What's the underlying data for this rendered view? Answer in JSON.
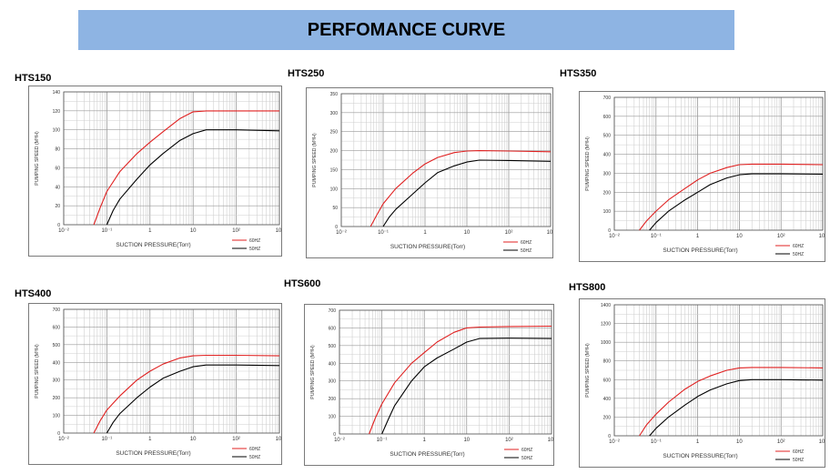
{
  "header": {
    "title": "PERFOMANCE CURVE"
  },
  "chart_data": [
    {
      "type": "line",
      "model": "HTS150",
      "xlabel": "SUCTION PRESSURE(Torr)",
      "ylabel": "PUMPING SPEED (M³/H)",
      "xscale": "log",
      "xlim": [
        0.01,
        1000
      ],
      "ylim": [
        0,
        140
      ],
      "xticks": [
        "10⁻²",
        "10⁻¹",
        "1",
        "10",
        "10²",
        "10³"
      ],
      "yticks": [
        "0",
        "20",
        "40",
        "60",
        "80",
        "100",
        "120",
        "140"
      ],
      "series": [
        {
          "name": "60HZ",
          "color": "#e02020",
          "x": [
            0.05,
            0.07,
            0.1,
            0.2,
            0.5,
            1,
            2,
            5,
            10,
            20,
            100,
            1000
          ],
          "y": [
            0,
            18,
            35,
            56,
            75,
            87,
            98,
            112,
            119,
            120,
            120,
            120
          ]
        },
        {
          "name": "50HZ",
          "color": "#000000",
          "x": [
            0.1,
            0.14,
            0.2,
            0.5,
            1,
            2,
            5,
            10,
            20,
            100,
            1000
          ],
          "y": [
            0,
            15,
            27,
            48,
            63,
            75,
            89,
            96,
            100,
            100,
            99
          ]
        }
      ]
    },
    {
      "type": "line",
      "model": "HTS250",
      "xlabel": "SUCTION PRESSURE(Torr)",
      "ylabel": "PUMPING SPEED (M³/H)",
      "xscale": "log",
      "xlim": [
        0.01,
        1000
      ],
      "ylim": [
        0,
        350
      ],
      "xticks": [
        "10⁻²",
        "10⁻¹",
        "1",
        "10",
        "10²",
        "10³"
      ],
      "yticks": [
        "0",
        "50",
        "100",
        "150",
        "200",
        "250",
        "300",
        "350"
      ],
      "series": [
        {
          "name": "60HZ",
          "color": "#e02020",
          "x": [
            0.05,
            0.07,
            0.1,
            0.2,
            0.5,
            1,
            2,
            5,
            10,
            20,
            100,
            1000
          ],
          "y": [
            0,
            30,
            60,
            100,
            140,
            165,
            182,
            195,
            199,
            200,
            199,
            197
          ]
        },
        {
          "name": "50HZ",
          "color": "#000000",
          "x": [
            0.1,
            0.14,
            0.2,
            0.5,
            1,
            2,
            5,
            10,
            20,
            100,
            1000
          ],
          "y": [
            0,
            25,
            45,
            85,
            115,
            142,
            160,
            170,
            175,
            174,
            172
          ]
        }
      ]
    },
    {
      "type": "line",
      "model": "HTS350",
      "xlabel": "SUCTION PRESSURE(Torr)",
      "ylabel": "PUMPING SPEED (M³/H)",
      "xscale": "log",
      "xlim": [
        0.01,
        1000
      ],
      "ylim": [
        0,
        700
      ],
      "xticks": [
        "10⁻²",
        "10⁻¹",
        "1",
        "10",
        "10²",
        "10³"
      ],
      "yticks": [
        "0",
        "100",
        "200",
        "300",
        "400",
        "500",
        "600",
        "700"
      ],
      "series": [
        {
          "name": "60HZ",
          "color": "#e02020",
          "x": [
            0.04,
            0.06,
            0.1,
            0.2,
            0.5,
            1,
            2,
            5,
            10,
            20,
            100,
            1000
          ],
          "y": [
            0,
            50,
            100,
            160,
            220,
            265,
            300,
            330,
            345,
            348,
            348,
            345
          ]
        },
        {
          "name": "50HZ",
          "color": "#000000",
          "x": [
            0.07,
            0.1,
            0.2,
            0.5,
            1,
            2,
            5,
            10,
            20,
            100,
            1000
          ],
          "y": [
            0,
            40,
            100,
            160,
            200,
            240,
            275,
            292,
            297,
            297,
            295
          ]
        }
      ]
    },
    {
      "type": "line",
      "model": "HTS400",
      "xlabel": "SUCTION PRESSURE(Torr)",
      "ylabel": "PUMPING SPEED (M³/H)",
      "xscale": "log",
      "xlim": [
        0.01,
        1000
      ],
      "ylim": [
        0,
        700
      ],
      "xticks": [
        "10⁻²",
        "10⁻¹",
        "1",
        "10",
        "10²",
        "10³"
      ],
      "yticks": [
        "0",
        "100",
        "200",
        "300",
        "400",
        "500",
        "600",
        "700"
      ],
      "series": [
        {
          "name": "60HZ",
          "color": "#e02020",
          "x": [
            0.05,
            0.07,
            0.1,
            0.2,
            0.5,
            1,
            2,
            5,
            10,
            20,
            100,
            1000
          ],
          "y": [
            0,
            70,
            130,
            210,
            300,
            350,
            390,
            425,
            437,
            440,
            440,
            437
          ]
        },
        {
          "name": "50HZ",
          "color": "#000000",
          "x": [
            0.1,
            0.14,
            0.2,
            0.5,
            1,
            2,
            5,
            10,
            20,
            100,
            1000
          ],
          "y": [
            0,
            60,
            110,
            200,
            260,
            310,
            350,
            375,
            385,
            385,
            382
          ]
        }
      ]
    },
    {
      "type": "line",
      "model": "HTS600",
      "xlabel": "SUCTION PRESSURE(Torr)",
      "ylabel": "PUMPING SPEED (M³/H)",
      "xscale": "log",
      "xlim": [
        0.01,
        1000
      ],
      "ylim": [
        0,
        700
      ],
      "xticks": [
        "10⁻²",
        "10⁻¹",
        "1",
        "10",
        "10²",
        "10³"
      ],
      "yticks": [
        "0",
        "100",
        "200",
        "300",
        "400",
        "500",
        "600",
        "700"
      ],
      "series": [
        {
          "name": "60HZ",
          "color": "#e02020",
          "x": [
            0.05,
            0.07,
            0.1,
            0.2,
            0.5,
            1,
            2,
            5,
            10,
            20,
            100,
            1000
          ],
          "y": [
            0,
            90,
            170,
            290,
            400,
            460,
            520,
            575,
            600,
            605,
            608,
            610
          ]
        },
        {
          "name": "50HZ",
          "color": "#000000",
          "x": [
            0.1,
            0.14,
            0.2,
            0.5,
            1,
            2,
            5,
            10,
            20,
            100,
            1000
          ],
          "y": [
            0,
            80,
            160,
            300,
            380,
            430,
            480,
            520,
            540,
            542,
            540
          ]
        }
      ]
    },
    {
      "type": "line",
      "model": "HTS800",
      "xlabel": "SUCTION PRESSURE(Torr)",
      "ylabel": "PUMPING SPEED (M³/H)",
      "xscale": "log",
      "xlim": [
        0.01,
        1000
      ],
      "ylim": [
        0,
        1400
      ],
      "xticks": [
        "10⁻²",
        "10⁻¹",
        "1",
        "10",
        "10²",
        "10³"
      ],
      "yticks": [
        "0",
        "200",
        "400",
        "600",
        "800",
        "1000",
        "1200",
        "1400"
      ],
      "series": [
        {
          "name": "60HZ",
          "color": "#e02020",
          "x": [
            0.04,
            0.06,
            0.1,
            0.2,
            0.5,
            1,
            2,
            5,
            10,
            20,
            100,
            1000
          ],
          "y": [
            0,
            120,
            230,
            360,
            500,
            580,
            640,
            700,
            725,
            730,
            730,
            725
          ]
        },
        {
          "name": "50HZ",
          "color": "#000000",
          "x": [
            0.07,
            0.1,
            0.2,
            0.5,
            1,
            2,
            5,
            10,
            20,
            100,
            1000
          ],
          "y": [
            0,
            80,
            200,
            330,
            420,
            490,
            555,
            590,
            600,
            600,
            595
          ]
        }
      ]
    }
  ]
}
